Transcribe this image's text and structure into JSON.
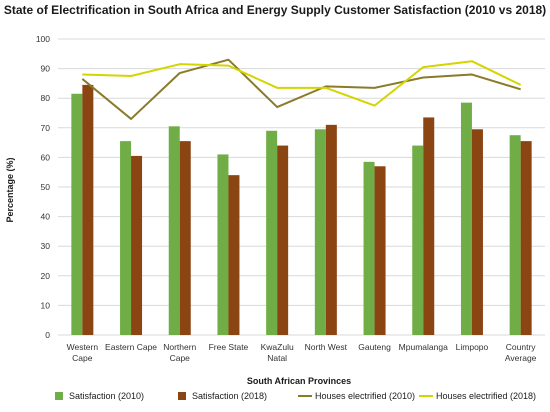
{
  "chart_data": {
    "type": "bar",
    "title": "State of Electrification in South Africa and Energy Supply Customer Satisfaction (2010 vs 2018)",
    "xlabel": "South African Provinces",
    "ylabel": "Percentage (%)",
    "ylim": [
      0,
      100
    ],
    "yticks": [
      0,
      10,
      20,
      30,
      40,
      50,
      60,
      70,
      80,
      90,
      100
    ],
    "grid": true,
    "legend_position": "bottom",
    "categories": [
      [
        "Western",
        "Cape"
      ],
      [
        "Eastern Cape"
      ],
      [
        "Northern",
        "Cape"
      ],
      [
        "Free State"
      ],
      [
        "KwaZulu",
        "Natal"
      ],
      [
        "North West"
      ],
      [
        "Gauteng"
      ],
      [
        "Mpumalanga"
      ],
      [
        "Limpopo"
      ],
      [
        "Country",
        "Average"
      ]
    ],
    "bar_series": [
      {
        "name": "Satisfaction (2010)",
        "color": "#70ad47",
        "values": [
          81.5,
          65.5,
          70.5,
          61,
          69,
          69.5,
          58.5,
          64,
          78.5,
          67.5
        ]
      },
      {
        "name": "Satisfaction (2018)",
        "color": "#8b4513",
        "values": [
          84.5,
          60.5,
          65.5,
          54,
          64,
          71,
          57,
          73.5,
          69.5,
          65.5
        ]
      }
    ],
    "line_series": [
      {
        "name": "Houses electrified (2010)",
        "color": "#8a7a2a",
        "values": [
          86.5,
          73,
          88.5,
          93,
          77,
          84,
          83.5,
          87,
          88,
          83
        ]
      },
      {
        "name": "Houses electrified (2018)",
        "color": "#d4d400",
        "values": [
          88,
          87.5,
          91.5,
          91,
          83.5,
          83.5,
          77.5,
          90.5,
          92.5,
          84.5
        ]
      }
    ]
  }
}
